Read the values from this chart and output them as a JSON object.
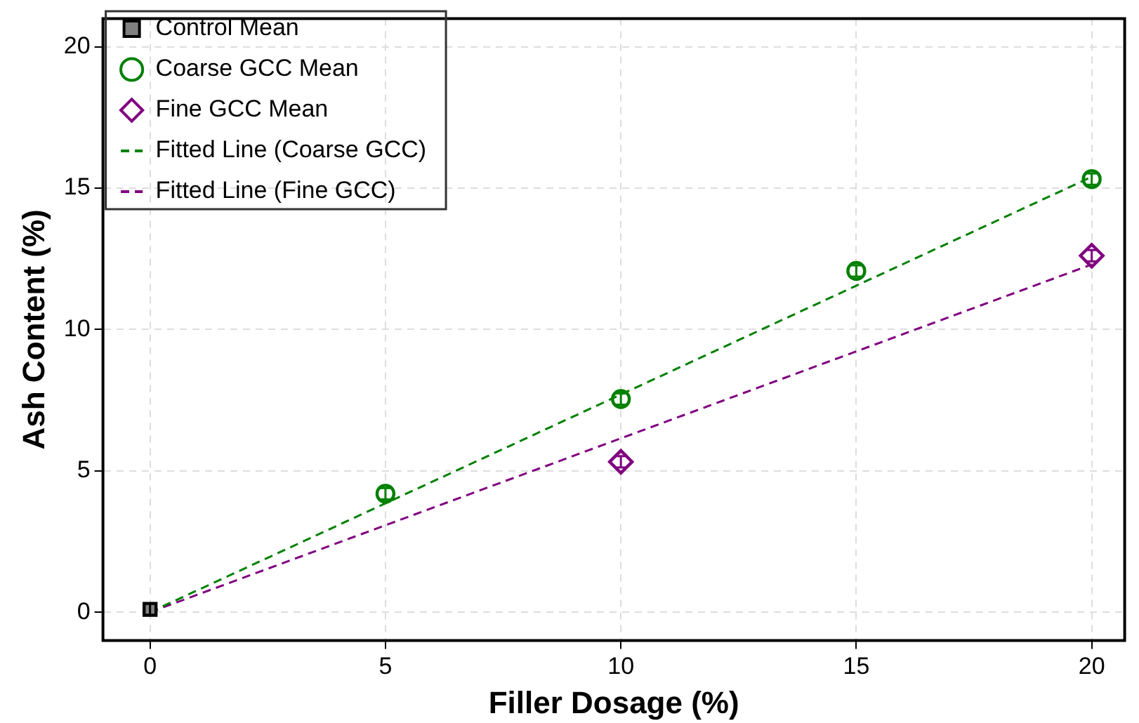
{
  "chart_data": {
    "type": "scatter",
    "xlabel": "Filler Dosage (%)",
    "ylabel": "Ash Content (%)",
    "xlim": [
      -1,
      20.7
    ],
    "ylim": [
      -1,
      21
    ],
    "xticks": [
      0,
      5,
      10,
      15,
      20
    ],
    "yticks": [
      0,
      5,
      10,
      15,
      20
    ],
    "grid": true,
    "legend": "top left",
    "series": [
      {
        "name": "Control Mean",
        "type": "scatter",
        "marker": "square",
        "color": "#808080",
        "x": [
          0
        ],
        "values": [
          0.1
        ],
        "errors": [
          0.2
        ]
      },
      {
        "name": "Coarse GCC Mean",
        "type": "scatter",
        "marker": "circle",
        "color": "#008000",
        "x": [
          5,
          10,
          15,
          20
        ],
        "values": [
          4.19,
          7.54,
          12.07,
          15.32
        ],
        "errors": [
          0.2,
          0.2,
          0.2,
          0.2
        ]
      },
      {
        "name": "Fine GCC Mean",
        "type": "scatter",
        "marker": "diamond",
        "color": "#800080",
        "x": [
          10,
          20
        ],
        "values": [
          5.32,
          12.61
        ],
        "errors": [
          0.2,
          0.2
        ]
      },
      {
        "name": "Fitted Line (Coarse GCC)",
        "type": "line",
        "marker": "none",
        "line_style": "dashed",
        "color": "#008000",
        "x": [
          0,
          20
        ],
        "values": [
          0,
          15.4
        ]
      },
      {
        "name": "Fitted Line (Fine GCC)",
        "type": "line",
        "marker": "none",
        "line_style": "dashed",
        "color": "#800080",
        "x": [
          0,
          20
        ],
        "values": [
          0,
          12.3
        ]
      }
    ]
  }
}
